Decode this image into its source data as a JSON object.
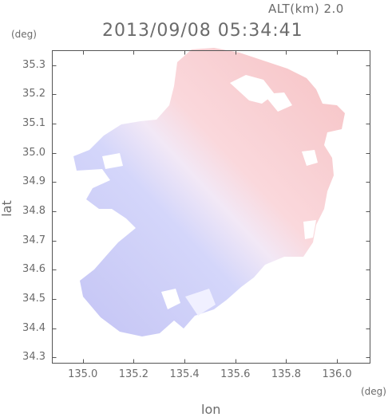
{
  "header": {
    "altitude": "ALT(km) 2.0",
    "timestamp": "2013/09/08 05:34:41"
  },
  "axes": {
    "y_unit": "(deg)",
    "x_unit": "(deg)",
    "y_label": "lat",
    "x_label": "lon",
    "y_ticks": [
      "35.3",
      "35.2",
      "35.1",
      "35.0",
      "34.9",
      "34.8",
      "34.7",
      "34.6",
      "34.5",
      "34.4",
      "34.3"
    ],
    "x_ticks": [
      "135.0",
      "135.2",
      "135.4",
      "135.6",
      "135.8",
      "136.0"
    ],
    "lon_range": [
      134.88,
      136.13
    ],
    "lat_range": [
      34.28,
      35.35
    ]
  },
  "colors": {
    "approaching_light": "#dcdcff",
    "approaching": "#c4c4f4",
    "receding_light": "#fadcdc",
    "receding": "#f6c0c0",
    "frame": "#555555"
  }
}
